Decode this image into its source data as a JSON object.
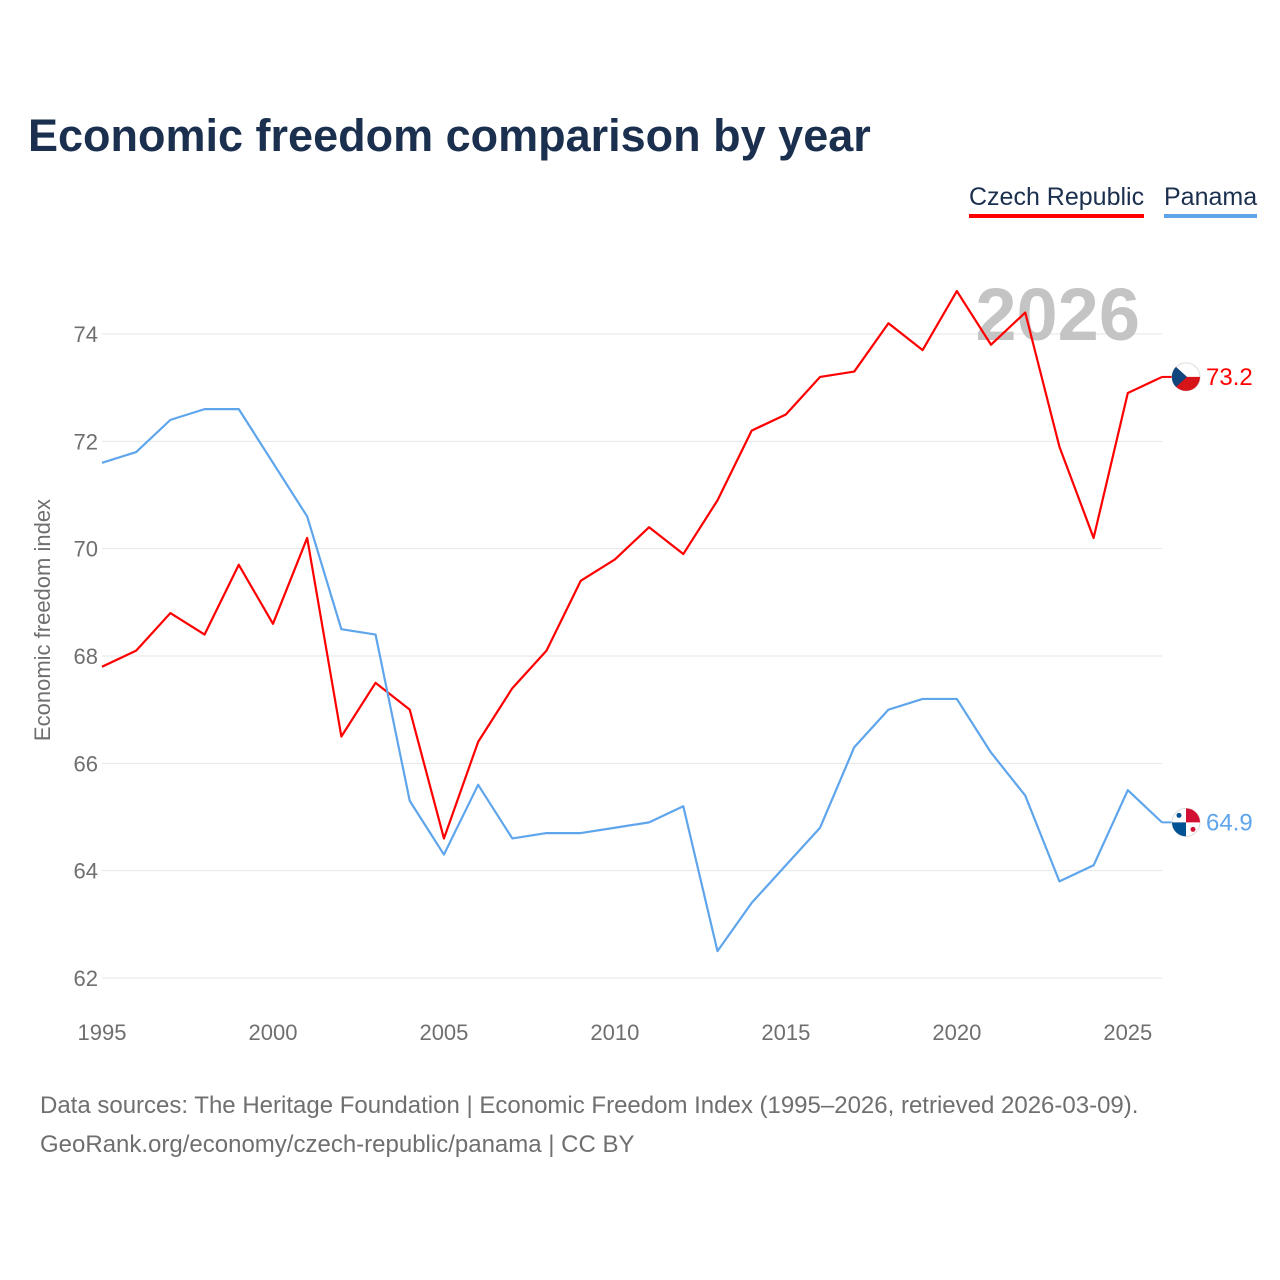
{
  "chart_data": {
    "type": "line",
    "title": "Economic freedom comparison by year",
    "xlabel": "",
    "ylabel": "Economic freedom index",
    "xlim": [
      1995,
      2026
    ],
    "ylim": [
      62,
      75
    ],
    "xticks": [
      1995,
      2000,
      2005,
      2010,
      2015,
      2020,
      2025
    ],
    "yticks": [
      62,
      64,
      66,
      68,
      70,
      72,
      74
    ],
    "grid": true,
    "legend_position": "top-right",
    "year_watermark": "2026",
    "x": [
      1995,
      1996,
      1997,
      1998,
      1999,
      2000,
      2001,
      2002,
      2003,
      2004,
      2005,
      2006,
      2007,
      2008,
      2009,
      2010,
      2011,
      2012,
      2013,
      2014,
      2015,
      2016,
      2017,
      2018,
      2019,
      2020,
      2021,
      2022,
      2023,
      2024,
      2025,
      2026
    ],
    "series": [
      {
        "name": "Czech Republic",
        "color": "#ff0000",
        "end_label": "73.2",
        "values": [
          67.8,
          68.1,
          68.8,
          68.4,
          69.7,
          68.6,
          70.2,
          66.5,
          67.5,
          67.0,
          64.6,
          66.4,
          67.4,
          68.1,
          69.4,
          69.8,
          70.4,
          69.9,
          70.9,
          72.2,
          72.5,
          73.2,
          73.3,
          74.2,
          73.7,
          74.8,
          73.8,
          74.4,
          71.9,
          70.2,
          72.9,
          73.2
        ]
      },
      {
        "name": "Panama",
        "color": "#5ea5ec",
        "end_label": "64.9",
        "values": [
          71.6,
          71.8,
          72.4,
          72.6,
          72.6,
          71.6,
          70.6,
          68.5,
          68.4,
          65.3,
          64.3,
          65.6,
          64.6,
          64.7,
          64.7,
          64.8,
          64.9,
          65.2,
          62.5,
          63.4,
          64.1,
          64.8,
          66.3,
          67.0,
          67.2,
          67.2,
          66.2,
          65.4,
          63.8,
          64.1,
          65.5,
          64.9
        ]
      }
    ]
  },
  "source": {
    "line1": "Data sources: The Heritage Foundation | Economic Freedom Index (1995–2026, retrieved 2026-03-09).",
    "line2": "GeoRank.org/economy/czech-republic/panama | CC BY"
  }
}
